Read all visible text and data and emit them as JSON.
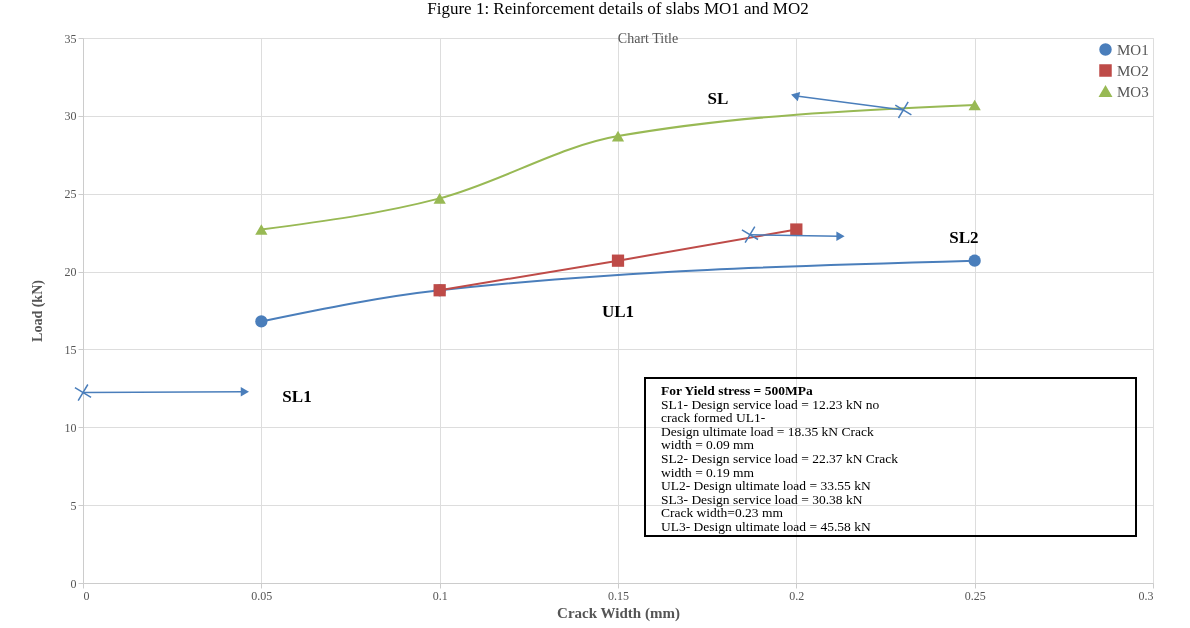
{
  "chart_data": {
    "type": "line",
    "title": "Figure 1: Reinforcement details of slabs MO1 and MO2",
    "subtitle": "Chart Title",
    "xlabel": "Crack Width (mm)",
    "ylabel": "Load (kN)",
    "series": [
      {
        "name": "MO1",
        "color": "#4a7ebb",
        "marker": "circle",
        "x": [
          0.05,
          0.1,
          0.25
        ],
        "values": [
          16.8,
          18.8,
          20.7
        ]
      },
      {
        "name": "MO2",
        "color": "#be4b48",
        "marker": "square",
        "x": [
          0.1,
          0.15,
          0.2
        ],
        "values": [
          18.8,
          20.7,
          22.7
        ]
      },
      {
        "name": "MO3",
        "color": "#98b954",
        "marker": "triangle",
        "x": [
          0.05,
          0.1,
          0.15,
          0.25
        ],
        "values": [
          22.7,
          24.7,
          28.7,
          30.7
        ]
      },
      {
        "type": "scatter",
        "color": "#4a7ebb",
        "marker": "cross",
        "x": [
          0,
          0.187,
          0.23
        ],
        "values": [
          12.23,
          22.37,
          30.38
        ]
      }
    ],
    "xlim": [
      0,
      0.3
    ],
    "xticks": [
      0,
      0.05,
      0.1,
      0.15,
      0.2,
      0.25,
      0.3
    ],
    "ylim": [
      0,
      35
    ],
    "yticks": [
      0,
      5,
      10,
      15,
      20,
      25,
      30,
      35
    ],
    "grid": true,
    "legend": "top right",
    "line_style": "solid",
    "annotations": [
      "SL1",
      "SL2",
      "SL",
      "UL1",
      "For Yield stress = 500MPa\nSL1- Design service load = 12.23 kN no\ncrack formed UL1-\nDesign ultimate load = 18.35 kN Crack\nwidth = 0.09 mm\nSL2- Design service load = 22.37 kN Crack\nwidth = 0.19 mm\nUL2- Design ultimate load = 33.55 kN\nSL3- Design service load = 30.38 kN\nCrack width=0.23 mm\nUL3- Design ultimate load = 45.58 kN"
    ]
  }
}
